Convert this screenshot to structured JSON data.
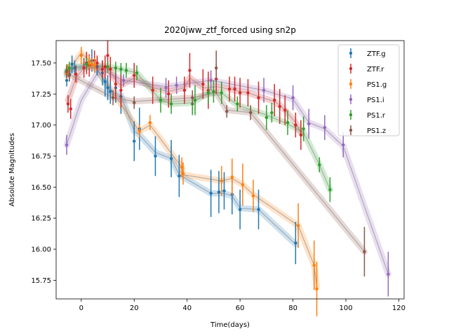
{
  "chart_data": {
    "type": "scatter",
    "title": "2020jww_ztf_forced using sn2p",
    "xlabel": "Time(days)",
    "ylabel": "Absolute Magnitudes",
    "xlim": [
      -9.5,
      122
    ],
    "ylim": [
      15.6,
      17.68
    ],
    "y_inverted": true,
    "x_ticks": [
      0,
      20,
      40,
      60,
      80,
      100,
      120
    ],
    "y_ticks": [
      15.75,
      16.0,
      16.25,
      16.5,
      16.75,
      17.0,
      17.25,
      17.5
    ],
    "grid": false,
    "legend_position": "top-right",
    "series": [
      {
        "name": "ZTF.g",
        "color": "#1f77b4",
        "points": [
          [
            -5.5,
            17.36,
            0.05
          ],
          [
            -4.5,
            17.41,
            0.06
          ],
          [
            -3.5,
            17.49,
            0.07
          ],
          [
            -2.5,
            17.46,
            0.06
          ],
          [
            2,
            17.5,
            0.07
          ],
          [
            4,
            17.52,
            0.09
          ],
          [
            6,
            17.47,
            0.07
          ],
          [
            8,
            17.42,
            0.1
          ],
          [
            9,
            17.35,
            0.12
          ],
          [
            10,
            17.3,
            0.1
          ],
          [
            11,
            17.27,
            0.1
          ],
          [
            13,
            17.3,
            0.12
          ],
          [
            15,
            17.23,
            0.14
          ],
          [
            20,
            16.87,
            0.16
          ],
          [
            22,
            16.97,
            0.17
          ],
          [
            28,
            16.75,
            0.16
          ],
          [
            34,
            16.73,
            0.15
          ],
          [
            37,
            16.59,
            0.17
          ],
          [
            49,
            16.45,
            0.19
          ],
          [
            52,
            16.46,
            0.17
          ],
          [
            54,
            16.47,
            0.15
          ],
          [
            57,
            16.44,
            0.16
          ],
          [
            60,
            16.32,
            0.16
          ],
          [
            67,
            16.32,
            0.16
          ],
          [
            81,
            16.05,
            0.17
          ]
        ],
        "model": [
          [
            -5.5,
            17.4
          ],
          [
            -4,
            17.44
          ],
          [
            -2,
            17.46
          ],
          [
            2,
            17.47
          ],
          [
            6,
            17.45
          ],
          [
            9,
            17.34
          ],
          [
            11,
            17.27
          ],
          [
            15,
            17.24
          ],
          [
            20,
            16.95
          ],
          [
            22,
            16.92
          ],
          [
            28,
            16.78
          ],
          [
            34,
            16.73
          ],
          [
            37,
            16.6
          ],
          [
            49,
            16.45
          ],
          [
            52,
            16.45
          ],
          [
            54,
            16.45
          ],
          [
            57,
            16.43
          ],
          [
            60,
            16.33
          ],
          [
            67,
            16.32
          ],
          [
            81,
            16.04
          ]
        ]
      },
      {
        "name": "ZTF.r",
        "color": "#d62728",
        "points": [
          [
            -5,
            17.17,
            0.07
          ],
          [
            -4,
            17.13,
            0.08
          ],
          [
            -2,
            17.41,
            0.07
          ],
          [
            1,
            17.46,
            0.08
          ],
          [
            2,
            17.5,
            0.09
          ],
          [
            3,
            17.48,
            0.09
          ],
          [
            5,
            17.52,
            0.08
          ],
          [
            6,
            17.5,
            0.06
          ],
          [
            8,
            17.45,
            0.07
          ],
          [
            9,
            17.47,
            0.09
          ],
          [
            10,
            17.56,
            0.12
          ],
          [
            11,
            17.45,
            0.1
          ],
          [
            13,
            17.33,
            0.12
          ],
          [
            15,
            17.28,
            0.14
          ],
          [
            20,
            17.4,
            0.1
          ],
          [
            27,
            17.28,
            0.11
          ],
          [
            33,
            17.25,
            0.11
          ],
          [
            39,
            17.28,
            0.11
          ],
          [
            41,
            17.44,
            0.14
          ],
          [
            46,
            17.33,
            0.12
          ],
          [
            48,
            17.28,
            0.15
          ],
          [
            51,
            17.37,
            0.12
          ],
          [
            56,
            17.29,
            0.1
          ],
          [
            58,
            17.29,
            0.1
          ],
          [
            60,
            17.26,
            0.12
          ],
          [
            63,
            17.26,
            0.11
          ],
          [
            67,
            17.22,
            0.13
          ],
          [
            73,
            17.2,
            0.13
          ],
          [
            75,
            17.15,
            0.14
          ],
          [
            77,
            17.12,
            0.12
          ],
          [
            81,
            17.0,
            0.1
          ],
          [
            83,
            16.92,
            0.12
          ]
        ],
        "model": [
          [
            -5,
            17.2
          ],
          [
            -2,
            17.38
          ],
          [
            1,
            17.46
          ],
          [
            5,
            17.48
          ],
          [
            9,
            17.46
          ],
          [
            11,
            17.44
          ],
          [
            13,
            17.36
          ],
          [
            15,
            17.32
          ],
          [
            20,
            17.38
          ],
          [
            27,
            17.3
          ],
          [
            33,
            17.27
          ],
          [
            39,
            17.3
          ],
          [
            41,
            17.38
          ],
          [
            46,
            17.3
          ],
          [
            48,
            17.3
          ],
          [
            51,
            17.31
          ],
          [
            56,
            17.29
          ],
          [
            60,
            17.27
          ],
          [
            63,
            17.26
          ],
          [
            67,
            17.23
          ],
          [
            73,
            17.19
          ],
          [
            75,
            17.16
          ],
          [
            77,
            17.12
          ],
          [
            81,
            17.02
          ],
          [
            83,
            16.94
          ]
        ]
      },
      {
        "name": "PS1.g",
        "color": "#ff7f0e",
        "points": [
          [
            -5.5,
            17.42,
            0.05
          ],
          [
            -5,
            17.44,
            0.05
          ],
          [
            0,
            17.56,
            0.07
          ],
          [
            3,
            17.51,
            0.05
          ],
          [
            4,
            17.49,
            0.05
          ],
          [
            5,
            17.48,
            0.06
          ],
          [
            22,
            16.95,
            0.05
          ],
          [
            26,
            17.02,
            0.06
          ],
          [
            38,
            16.66,
            0.08
          ],
          [
            38.5,
            16.61,
            0.09
          ],
          [
            53,
            16.55,
            0.12
          ],
          [
            57,
            16.58,
            0.15
          ],
          [
            61,
            16.52,
            0.17
          ],
          [
            65,
            16.43,
            0.13
          ],
          [
            82,
            16.19,
            0.18
          ],
          [
            88,
            15.87,
            0.2
          ],
          [
            89,
            15.68,
            0.22
          ]
        ],
        "model": [
          [
            -5.5,
            17.42
          ],
          [
            0,
            17.58
          ],
          [
            3,
            17.52
          ],
          [
            5,
            17.48
          ],
          [
            22,
            16.95
          ],
          [
            26,
            17.0
          ],
          [
            38,
            16.66
          ],
          [
            38.5,
            16.6
          ],
          [
            53,
            16.55
          ],
          [
            57,
            16.57
          ],
          [
            61,
            16.52
          ],
          [
            65,
            16.44
          ],
          [
            82,
            16.19
          ],
          [
            88,
            15.87
          ],
          [
            89,
            15.7
          ]
        ]
      },
      {
        "name": "PS1.i",
        "color": "#9467bd",
        "points": [
          [
            -5.5,
            16.84,
            0.08
          ],
          [
            16,
            17.36,
            0.05
          ],
          [
            32,
            17.3,
            0.08
          ],
          [
            36,
            17.32,
            0.07
          ],
          [
            49,
            17.36,
            0.08
          ],
          [
            69,
            17.28,
            0.1
          ],
          [
            80,
            17.22,
            0.1
          ],
          [
            86,
            17.01,
            0.12
          ],
          [
            92,
            16.98,
            0.1
          ],
          [
            99,
            16.84,
            0.1
          ],
          [
            116,
            15.8,
            0.18
          ]
        ],
        "model": [
          [
            -5.5,
            16.84
          ],
          [
            0,
            17.2
          ],
          [
            7,
            17.45
          ],
          [
            16,
            17.36
          ],
          [
            32,
            17.31
          ],
          [
            36,
            17.32
          ],
          [
            49,
            17.36
          ],
          [
            69,
            17.28
          ],
          [
            80,
            17.21
          ],
          [
            86,
            17.02
          ],
          [
            92,
            16.97
          ],
          [
            99,
            16.83
          ],
          [
            116,
            15.8
          ]
        ]
      },
      {
        "name": "PS1.r",
        "color": "#2ca02c",
        "points": [
          [
            -5.5,
            17.44,
            0.05
          ],
          [
            -4.5,
            17.46,
            0.05
          ],
          [
            2,
            17.49,
            0.05
          ],
          [
            10,
            17.47,
            0.05
          ],
          [
            13,
            17.46,
            0.05
          ],
          [
            15,
            17.45,
            0.05
          ],
          [
            17,
            17.44,
            0.06
          ],
          [
            21,
            17.42,
            0.06
          ],
          [
            30,
            17.2,
            0.1
          ],
          [
            34,
            17.17,
            0.08
          ],
          [
            42,
            17.17,
            0.09
          ],
          [
            43,
            17.2,
            0.12
          ],
          [
            48,
            17.26,
            0.09
          ],
          [
            50,
            17.27,
            0.09
          ],
          [
            53,
            17.26,
            0.09
          ],
          [
            59,
            17.17,
            0.06
          ],
          [
            70,
            17.06,
            0.1
          ],
          [
            72,
            17.1,
            0.08
          ],
          [
            78,
            17.02,
            0.1
          ],
          [
            84,
            16.97,
            0.1
          ],
          [
            90,
            16.68,
            0.06
          ],
          [
            94,
            16.48,
            0.1
          ]
        ],
        "model": [
          [
            -5.5,
            17.44
          ],
          [
            2,
            17.49
          ],
          [
            10,
            17.47
          ],
          [
            15,
            17.45
          ],
          [
            21,
            17.42
          ],
          [
            30,
            17.2
          ],
          [
            34,
            17.17
          ],
          [
            42,
            17.18
          ],
          [
            48,
            17.26
          ],
          [
            53,
            17.26
          ],
          [
            59,
            17.16
          ],
          [
            70,
            17.08
          ],
          [
            78,
            17.01
          ],
          [
            84,
            16.94
          ],
          [
            90,
            16.68
          ],
          [
            94,
            16.48
          ]
        ]
      },
      {
        "name": "PS1.z",
        "color": "#8c564b",
        "points": [
          [
            -5.5,
            17.43,
            0.05
          ],
          [
            -4.5,
            17.4,
            0.05
          ],
          [
            12,
            17.22,
            0.06
          ],
          [
            20,
            17.18,
            0.05
          ],
          [
            42,
            17.22,
            0.06
          ],
          [
            51,
            17.46,
            0.14
          ],
          [
            55,
            17.11,
            0.05
          ],
          [
            64,
            17.1,
            0.06
          ],
          [
            107,
            15.98,
            0.2
          ]
        ],
        "model": [
          [
            -5.5,
            17.42
          ],
          [
            12,
            17.22
          ],
          [
            20,
            17.19
          ],
          [
            42,
            17.22
          ],
          [
            51,
            17.26
          ],
          [
            55,
            17.12
          ],
          [
            64,
            17.1
          ],
          [
            107,
            15.98
          ]
        ]
      }
    ]
  }
}
